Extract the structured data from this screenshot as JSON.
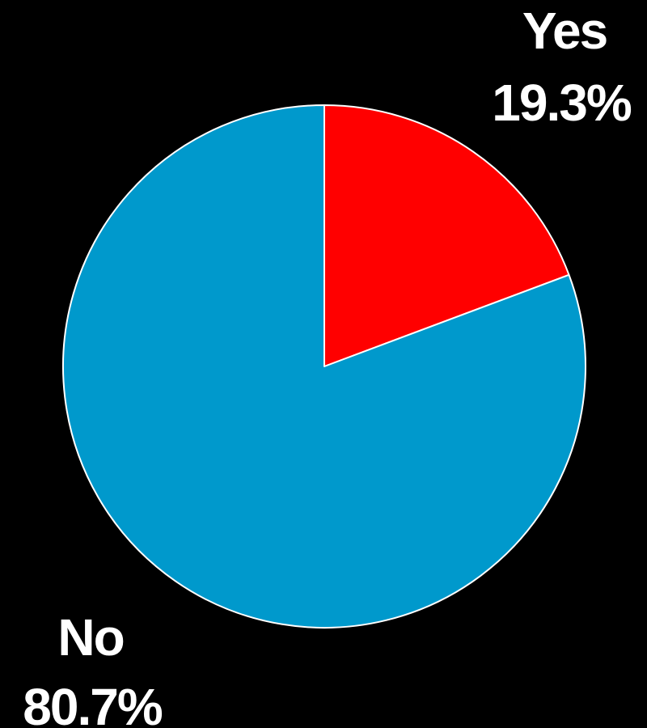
{
  "chart_data": {
    "type": "pie",
    "slices": [
      {
        "label": "Yes",
        "value": 19.3,
        "value_label": "19.3%",
        "color": "#FF0000"
      },
      {
        "label": "No",
        "value": 80.7,
        "value_label": "80.7%",
        "color": "#0099CC"
      }
    ],
    "start": "12 o'clock",
    "direction": "clockwise",
    "slice_border_color": "#FFFFFF",
    "background_color": "#000000",
    "label_color": "#FFFFFF"
  }
}
